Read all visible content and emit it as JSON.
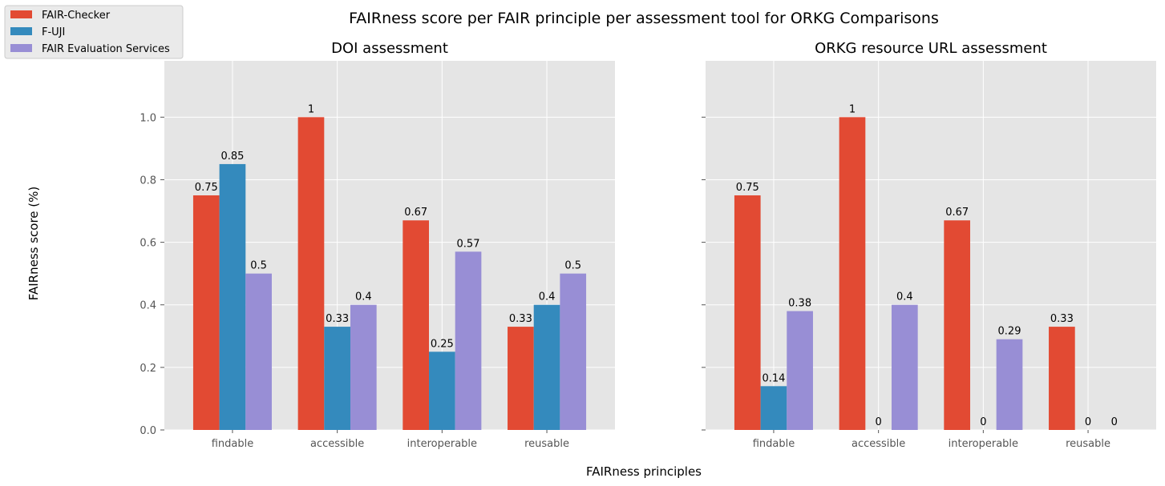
{
  "figure": {
    "suptitle": "FAIRness score per FAIR principle per assessment tool for ORKG Comparisons",
    "supxlabel": "FAIRness principles",
    "supylabel": "FAIRness score (%)"
  },
  "legend": {
    "placement": "top-left",
    "entries": [
      {
        "label": "FAIR-Checker",
        "color": "#E24A33"
      },
      {
        "label": "F-UJI",
        "color": "#348ABD"
      },
      {
        "label": "FAIR Evaluation Services",
        "color": "#988ED5"
      }
    ]
  },
  "style": {
    "background": "#E5E5E5",
    "grid": true,
    "gridColor": "#ffffff"
  },
  "chart_data": [
    {
      "type": "bar",
      "title": "DOI assessment",
      "categories": [
        "findable",
        "accessible",
        "interoperable",
        "reusable"
      ],
      "ylim": [
        0,
        1.18
      ],
      "yticks": [
        "0.0",
        "0.2",
        "0.4",
        "0.6",
        "0.8",
        "1.0"
      ],
      "series": [
        {
          "name": "FAIR-Checker",
          "values": [
            0.75,
            1,
            0.67,
            0.33
          ],
          "labels": [
            "0.75",
            "1",
            "0.67",
            "0.33"
          ]
        },
        {
          "name": "F-UJI",
          "values": [
            0.85,
            0.33,
            0.25,
            0.4
          ],
          "labels": [
            "0.85",
            "0.33",
            "0.25",
            "0.4"
          ]
        },
        {
          "name": "FAIR Evaluation Services",
          "values": [
            0.5,
            0.4,
            0.57,
            0.5
          ],
          "labels": [
            "0.5",
            "0.4",
            "0.57",
            "0.5"
          ]
        }
      ]
    },
    {
      "type": "bar",
      "title": "ORKG resource URL assessment",
      "categories": [
        "findable",
        "accessible",
        "interoperable",
        "reusable"
      ],
      "ylim": [
        0,
        1.18
      ],
      "yticks": [],
      "series": [
        {
          "name": "FAIR-Checker",
          "values": [
            0.75,
            1,
            0.67,
            0.33
          ],
          "labels": [
            "0.75",
            "1",
            "0.67",
            "0.33"
          ]
        },
        {
          "name": "F-UJI",
          "values": [
            0.14,
            0,
            0,
            0
          ],
          "labels": [
            "0.14",
            "0",
            "0",
            "0"
          ]
        },
        {
          "name": "FAIR Evaluation Services",
          "values": [
            0.38,
            0.4,
            0.29,
            0
          ],
          "labels": [
            "0.38",
            "0.4",
            "0.29",
            "0"
          ]
        }
      ]
    }
  ]
}
